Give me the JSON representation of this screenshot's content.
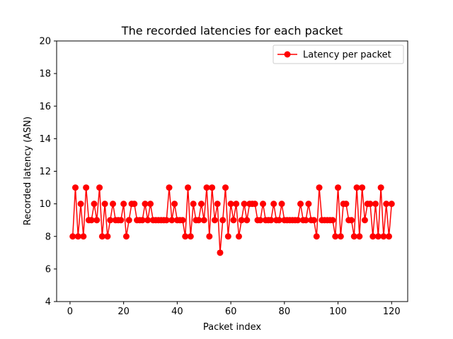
{
  "chart_data": {
    "type": "line",
    "title": "The recorded latencies for each packet",
    "xlabel": "Packet index",
    "ylabel": "Recorded latency (ASN)",
    "xlim": [
      -5,
      126
    ],
    "ylim": [
      4,
      20
    ],
    "xticks": [
      0,
      20,
      40,
      60,
      80,
      100,
      120
    ],
    "yticks": [
      4,
      6,
      8,
      10,
      12,
      14,
      16,
      18,
      20
    ],
    "grid": false,
    "legend_position": "top-right",
    "series": [
      {
        "name": "Latency per packet",
        "color": "#ff0000",
        "marker": "circle",
        "x": [
          1,
          2,
          3,
          4,
          5,
          6,
          7,
          8,
          9,
          10,
          11,
          12,
          13,
          14,
          15,
          16,
          17,
          18,
          19,
          20,
          21,
          22,
          23,
          24,
          25,
          26,
          27,
          28,
          29,
          30,
          31,
          32,
          33,
          34,
          35,
          36,
          37,
          38,
          39,
          40,
          41,
          42,
          43,
          44,
          45,
          46,
          47,
          48,
          49,
          50,
          51,
          52,
          53,
          54,
          55,
          56,
          57,
          58,
          59,
          60,
          61,
          62,
          63,
          64,
          65,
          66,
          67,
          68,
          69,
          70,
          71,
          72,
          73,
          74,
          75,
          76,
          77,
          78,
          79,
          80,
          81,
          82,
          83,
          84,
          85,
          86,
          87,
          88,
          89,
          90,
          91,
          92,
          93,
          94,
          95,
          96,
          97,
          98,
          99,
          100,
          101,
          102,
          103,
          104,
          105,
          106,
          107,
          108,
          109,
          110,
          111,
          112,
          113,
          114,
          115,
          116,
          117,
          118,
          119,
          120
        ],
        "y": [
          8,
          11,
          8,
          10,
          8,
          11,
          9,
          9,
          10,
          9,
          11,
          8,
          10,
          8,
          9,
          10,
          9,
          9,
          9,
          10,
          8,
          9,
          10,
          10,
          9,
          9,
          9,
          10,
          9,
          10,
          9,
          9,
          9,
          9,
          9,
          9,
          11,
          9,
          10,
          9,
          9,
          9,
          8,
          11,
          8,
          10,
          9,
          9,
          10,
          9,
          11,
          8,
          11,
          9,
          10,
          7,
          9,
          11,
          8,
          10,
          9,
          10,
          8,
          9,
          10,
          9,
          10,
          10,
          10,
          9,
          9,
          10,
          9,
          9,
          9,
          10,
          9,
          9,
          10,
          9,
          9,
          9,
          9,
          9,
          9,
          10,
          9,
          9,
          10,
          9,
          9,
          8,
          11,
          9,
          9,
          9,
          9,
          9,
          8,
          11,
          8,
          10,
          10,
          9,
          9,
          8,
          11,
          8,
          11,
          9,
          10,
          10,
          8,
          10,
          8,
          11,
          8,
          10,
          8,
          10
        ]
      }
    ]
  }
}
